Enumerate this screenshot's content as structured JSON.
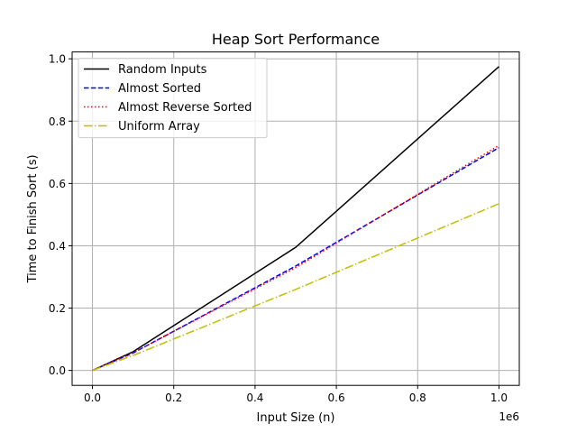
{
  "chart_data": {
    "type": "line",
    "title": "Heap Sort Performance",
    "xlabel": "Input Size (n)",
    "ylabel": "Time to Finish Sort (s)",
    "x_offset_label": "1e6",
    "x": [
      0,
      100000,
      500000,
      1000000
    ],
    "xlim": [
      -50000,
      1050000
    ],
    "ylim": [
      -0.048,
      1.022
    ],
    "x_ticks": [
      0,
      200000,
      400000,
      600000,
      800000,
      1000000
    ],
    "x_tick_labels": [
      "0.0",
      "0.2",
      "0.4",
      "0.6",
      "0.8",
      "1.0"
    ],
    "y_ticks": [
      0,
      0.2,
      0.4,
      0.6,
      0.8,
      1.0
    ],
    "y_tick_labels": [
      "0.0",
      "0.2",
      "0.4",
      "0.6",
      "0.8",
      "1.0"
    ],
    "grid": true,
    "legend_position": "upper-left",
    "series": [
      {
        "name": "Random Inputs",
        "values": [
          0,
          0.06,
          0.395,
          0.975
        ],
        "color": "#000000",
        "style": "solid"
      },
      {
        "name": "Almost Sorted",
        "values": [
          0,
          0.056,
          0.335,
          0.715
        ],
        "color": "#0000ff",
        "style": "dashed"
      },
      {
        "name": "Almost Reverse Sorted",
        "values": [
          0,
          0.057,
          0.33,
          0.722
        ],
        "color": "#ff0000",
        "style": "dotted"
      },
      {
        "name": "Uniform Array",
        "values": [
          0,
          0.048,
          0.26,
          0.535
        ],
        "color": "#bfbf00",
        "style": "dashdot"
      }
    ]
  }
}
